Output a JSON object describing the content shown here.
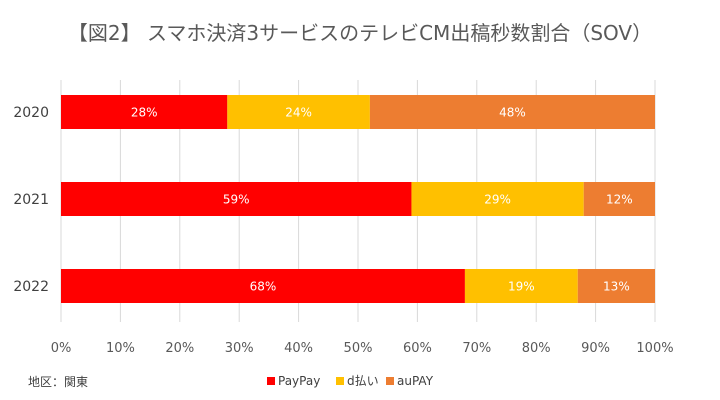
{
  "chart_data": {
    "type": "bar",
    "orientation": "horizontal",
    "stacked": true,
    "title": "【図2】 スマホ決済3サービスのテレビCM出稿秒数割合（SOV）",
    "note": "地区：関東",
    "categories": [
      "2020",
      "2021",
      "2022"
    ],
    "series": [
      {
        "name": "PayPay",
        "color": "#FF0000",
        "values": [
          28,
          59,
          68
        ],
        "labels": [
          "28%",
          "59%",
          "68%"
        ]
      },
      {
        "name": "d払い",
        "color": "#FFC000",
        "values": [
          24,
          29,
          19
        ],
        "labels": [
          "24%",
          "29%",
          "19%"
        ]
      },
      {
        "name": "auPAY",
        "color": "#ED7D31",
        "values": [
          48,
          12,
          13
        ],
        "labels": [
          "48%",
          "12%",
          "13%"
        ]
      }
    ],
    "xlim": [
      0,
      100
    ],
    "x_ticks": [
      "0%",
      "10%",
      "20%",
      "30%",
      "40%",
      "50%",
      "60%",
      "70%",
      "80%",
      "90%",
      "100%"
    ],
    "grid": true,
    "legend_position": "bottom"
  }
}
